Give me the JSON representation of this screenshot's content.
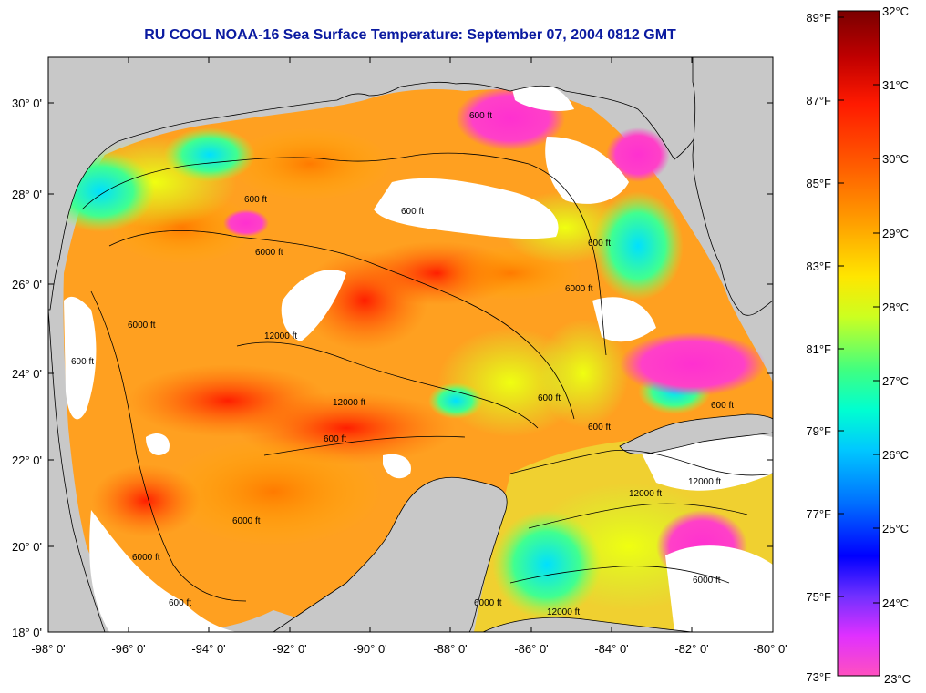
{
  "title": "RU COOL  NOAA-16  Sea Surface Temperature:  September 07, 2004 0812 GMT",
  "map": {
    "lon_range": [
      -98,
      -80
    ],
    "lat_range": [
      18,
      31
    ],
    "lat_ticks": [
      "30° 0'",
      "28° 0'",
      "26° 0'",
      "24° 0'",
      "22° 0'",
      "20° 0'",
      "18° 0'"
    ],
    "lon_ticks": [
      "-98° 0'",
      "-96° 0'",
      "-94° 0'",
      "-92° 0'",
      "-90° 0'",
      "-88° 0'",
      "-86° 0'",
      "-84° 0'",
      "-82° 0'",
      "-80° 0'"
    ],
    "land_color": "#c8c8c8",
    "cloud_color": "#ffffff",
    "contour_labels": [
      "600 ft",
      "600 ft",
      "600 ft",
      "600 ft",
      "600 ft",
      "600 ft",
      "600 ft",
      "6000 ft",
      "6000 ft",
      "6000 ft",
      "6000 ft",
      "12000 ft",
      "12000 ft",
      "12000 ft",
      "12000 ft",
      "12000 ft",
      "600 ft",
      "600 ft",
      "6000 ft",
      "6000 ft",
      "6000 ft",
      "600 ft"
    ]
  },
  "colorbar": {
    "fahrenheit": [
      "89°F",
      "87°F",
      "85°F",
      "83°F",
      "81°F",
      "79°F",
      "77°F",
      "75°F",
      "73°F"
    ],
    "celsius": [
      "32°C",
      "31°C",
      "30°C",
      "29°C",
      "28°C",
      "27°C",
      "26°C",
      "25°C",
      "24°C",
      "23°C"
    ],
    "colors_top_to_bottom": [
      "#7a0000",
      "#d00000",
      "#ff2000",
      "#ff6a00",
      "#ffb000",
      "#ffff00",
      "#9cff30",
      "#00ffb0",
      "#00d8ff",
      "#0090ff",
      "#0000ff",
      "#7a3cff",
      "#ff30e0",
      "#ff60b0"
    ]
  }
}
